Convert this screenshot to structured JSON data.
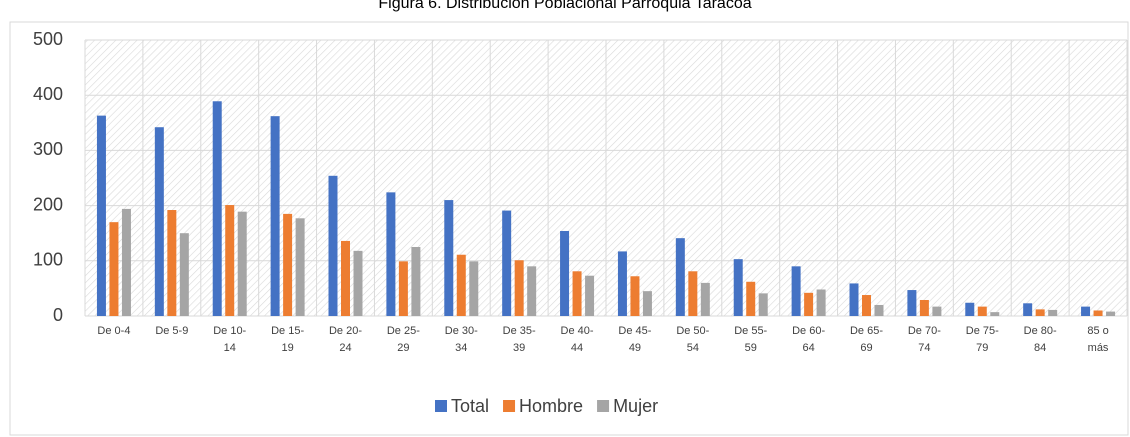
{
  "chart_data": {
    "type": "bar",
    "title": "Figura 6. Distribución Poblacional Parroquia Taracoa",
    "categories": [
      "De 0-4",
      "De 5-9",
      "De 10-14",
      "De 15-19",
      "De 20-24",
      "De 25-29",
      "De 30-34",
      "De 35-39",
      "De 40-44",
      "De 45-49",
      "De 50-54",
      "De 55-59",
      "De 60-64",
      "De 65-69",
      "De 70-74",
      "De 75-79",
      "De 80-84",
      "85 o más"
    ],
    "series": [
      {
        "name": "Total",
        "color": "#4472c4",
        "values": [
          363,
          342,
          389,
          362,
          254,
          224,
          210,
          191,
          154,
          117,
          141,
          103,
          90,
          59,
          47,
          24,
          23,
          17
        ]
      },
      {
        "name": "Hombre",
        "color": "#ed7d31",
        "values": [
          170,
          192,
          201,
          185,
          136,
          99,
          111,
          101,
          81,
          72,
          81,
          62,
          42,
          38,
          29,
          17,
          12,
          10
        ]
      },
      {
        "name": "Mujer",
        "color": "#a5a5a5",
        "values": [
          194,
          150,
          189,
          177,
          118,
          125,
          99,
          90,
          73,
          45,
          60,
          41,
          48,
          20,
          17,
          7,
          11,
          8
        ]
      }
    ],
    "ylim": [
      0,
      500
    ],
    "yticks": [
      0,
      100,
      200,
      300,
      400,
      500
    ],
    "grid": true,
    "legend": "bottom"
  }
}
